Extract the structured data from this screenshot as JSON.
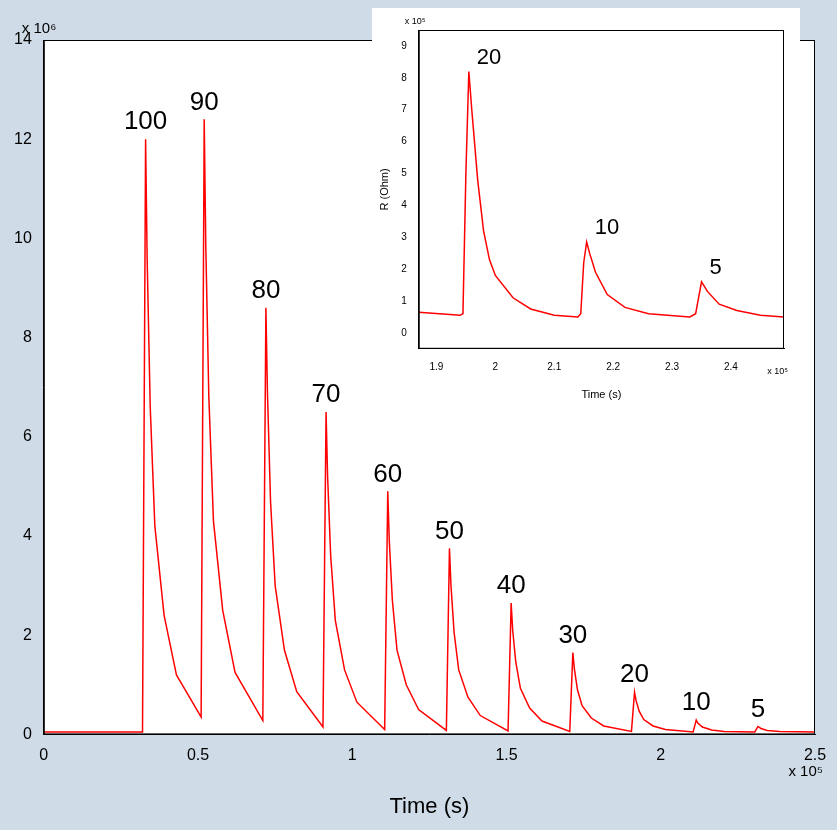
{
  "chart_data": [
    {
      "type": "line",
      "x_label": "Time (s)",
      "x_scale_label": "x 10⁵",
      "y_scale_label": "x 10⁶",
      "color": "#ff0000",
      "grid": false,
      "xlim": [
        0,
        2.5
      ],
      "xticks": [
        0,
        0.5,
        1,
        1.5,
        2,
        2.5
      ],
      "ylim": [
        0,
        14
      ],
      "yticks": [
        0,
        2,
        4,
        6,
        8,
        10,
        12,
        14
      ],
      "x": [
        0,
        0.32,
        0.33,
        0.335,
        0.345,
        0.36,
        0.39,
        0.43,
        0.51,
        0.52,
        0.525,
        0.535,
        0.55,
        0.58,
        0.62,
        0.71,
        0.72,
        0.725,
        0.735,
        0.75,
        0.78,
        0.82,
        0.905,
        0.915,
        0.92,
        0.93,
        0.945,
        0.975,
        1.015,
        1.105,
        1.115,
        1.12,
        1.13,
        1.145,
        1.175,
        1.215,
        1.305,
        1.315,
        1.32,
        1.33,
        1.345,
        1.375,
        1.415,
        1.505,
        1.515,
        1.52,
        1.53,
        1.545,
        1.575,
        1.615,
        1.705,
        1.715,
        1.72,
        1.73,
        1.745,
        1.775,
        1.815,
        1.905,
        1.915,
        1.92,
        1.93,
        1.945,
        1.975,
        2.015,
        2.105,
        2.115,
        2.12,
        2.135,
        2.165,
        2.205,
        2.305,
        2.315,
        2.325,
        2.345,
        2.385,
        2.5
      ],
      "values": [
        0.05,
        0.05,
        12.0,
        9.6,
        6.6,
        4.2,
        2.4,
        1.2,
        0.35,
        12.4,
        9.9,
        6.8,
        4.3,
        2.5,
        1.25,
        0.28,
        8.6,
        6.9,
        4.7,
        3.0,
        1.7,
        0.86,
        0.15,
        6.5,
        5.2,
        3.6,
        2.3,
        1.3,
        0.65,
        0.1,
        4.9,
        3.9,
        2.7,
        1.7,
        1.0,
        0.5,
        0.08,
        3.75,
        3.0,
        2.06,
        1.3,
        0.75,
        0.38,
        0.07,
        2.65,
        2.1,
        1.46,
        0.93,
        0.53,
        0.27,
        0.06,
        1.65,
        1.32,
        0.9,
        0.58,
        0.33,
        0.17,
        0.06,
        0.85,
        0.68,
        0.47,
        0.3,
        0.17,
        0.1,
        0.05,
        0.29,
        0.23,
        0.15,
        0.09,
        0.06,
        0.05,
        0.16,
        0.12,
        0.08,
        0.06,
        0.05
      ],
      "annotations": [
        {
          "text": "100",
          "x": 0.33,
          "y": 12.0
        },
        {
          "text": "90",
          "x": 0.52,
          "y": 12.4
        },
        {
          "text": "80",
          "x": 0.72,
          "y": 8.6
        },
        {
          "text": "70",
          "x": 0.915,
          "y": 6.5
        },
        {
          "text": "60",
          "x": 1.115,
          "y": 4.9
        },
        {
          "text": "50",
          "x": 1.315,
          "y": 3.75
        },
        {
          "text": "40",
          "x": 1.515,
          "y": 2.65
        },
        {
          "text": "30",
          "x": 1.715,
          "y": 1.65
        },
        {
          "text": "20",
          "x": 1.915,
          "y": 0.85
        },
        {
          "text": "10",
          "x": 2.115,
          "y": 0.29
        },
        {
          "text": "5",
          "x": 2.315,
          "y": 0.16
        }
      ]
    },
    {
      "type": "line",
      "x_label": "Time (s)",
      "y_label": "R (Ohm)",
      "x_scale_label": "x 10⁵",
      "y_scale_label": "x 10⁵",
      "color": "#ff0000",
      "grid": false,
      "xlim": [
        1.87,
        2.49
      ],
      "xticks": [
        1.9,
        2,
        2.1,
        2.2,
        2.3,
        2.4
      ],
      "ylim": [
        -0.5,
        9.5
      ],
      "yticks": [
        0,
        1,
        2,
        3,
        4,
        5,
        6,
        7,
        8,
        9
      ],
      "x": [
        1.87,
        1.94,
        1.945,
        1.95,
        1.955,
        1.96,
        1.97,
        1.98,
        1.99,
        2.0,
        2.03,
        2.06,
        2.1,
        2.14,
        2.145,
        2.15,
        2.155,
        2.16,
        2.17,
        2.19,
        2.22,
        2.26,
        2.33,
        2.34,
        2.35,
        2.36,
        2.38,
        2.41,
        2.45,
        2.49
      ],
      "values": [
        0.65,
        0.55,
        0.6,
        5.0,
        8.2,
        7.0,
        4.8,
        3.2,
        2.3,
        1.8,
        1.1,
        0.75,
        0.55,
        0.5,
        0.6,
        2.2,
        2.85,
        2.5,
        1.9,
        1.2,
        0.8,
        0.6,
        0.5,
        0.6,
        1.6,
        1.3,
        0.9,
        0.7,
        0.55,
        0.5
      ],
      "annotations": [
        {
          "text": "20",
          "x": 1.955,
          "y": 8.2
        },
        {
          "text": "10",
          "x": 2.155,
          "y": 2.85
        },
        {
          "text": "5",
          "x": 2.35,
          "y": 1.6
        }
      ]
    }
  ]
}
